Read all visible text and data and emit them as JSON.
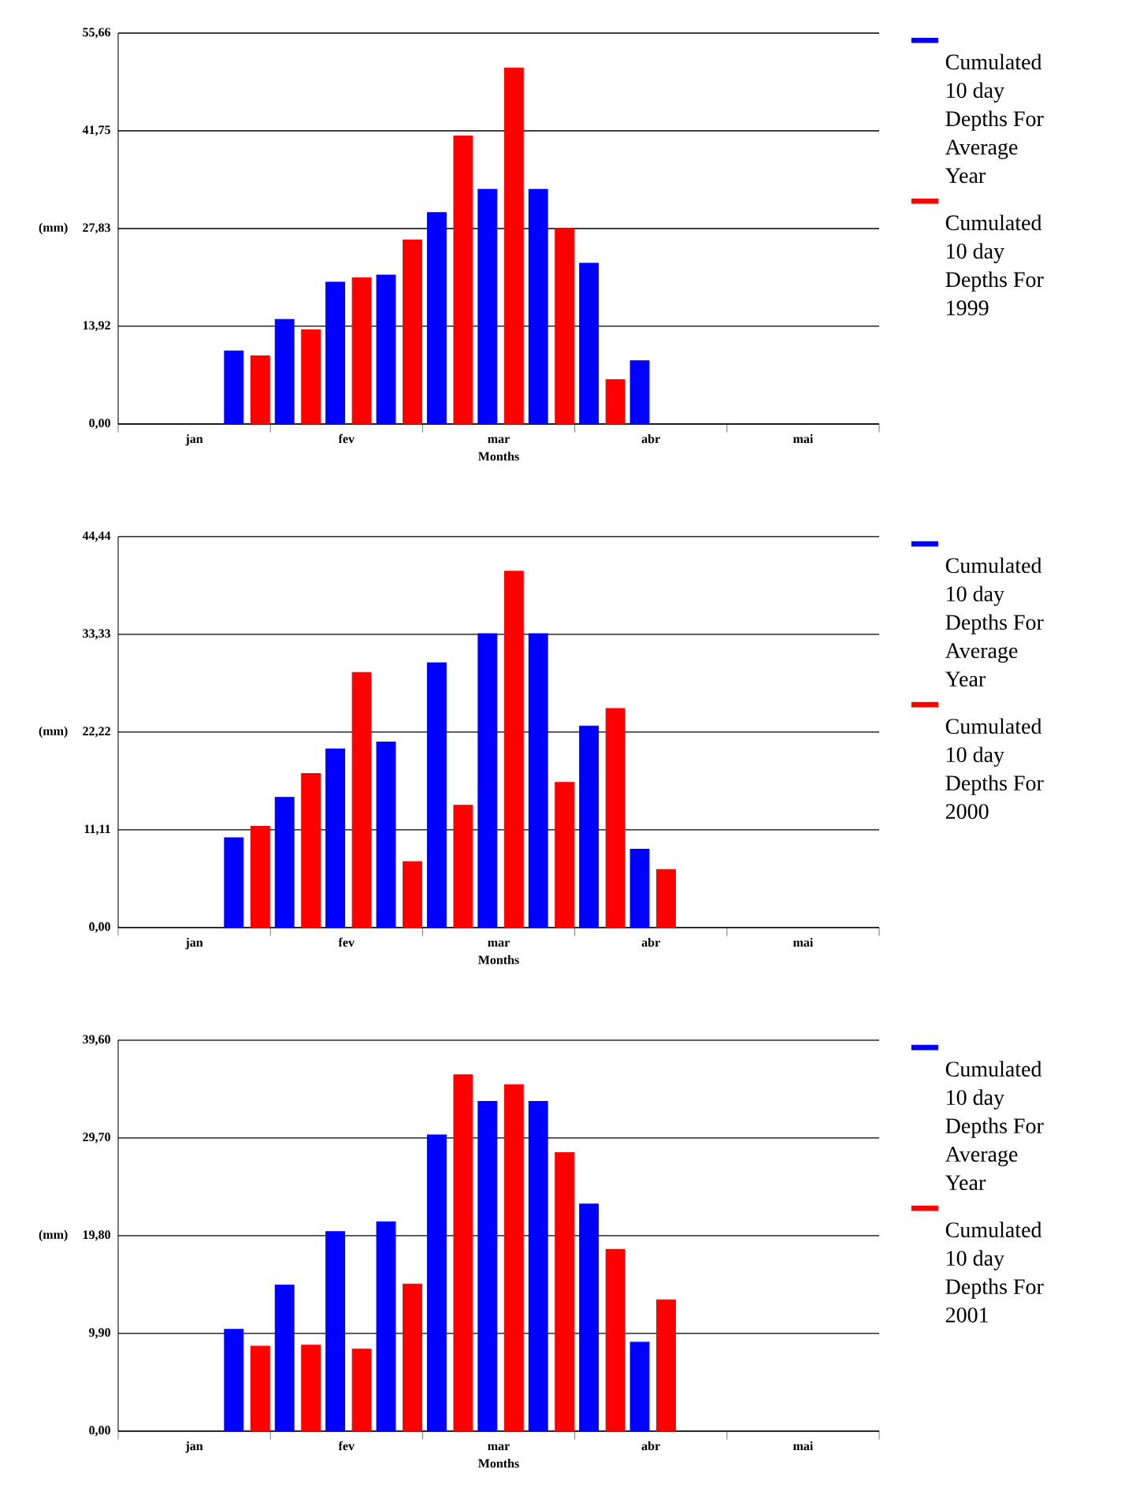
{
  "chart_data": [
    {
      "type": "bar",
      "categories": [
        null,
        "jan",
        null,
        null,
        "fev",
        null,
        null,
        "mar",
        null,
        null,
        "abr",
        null,
        null,
        "mai",
        null
      ],
      "xlabel": "Months",
      "ylabel": "(mm)",
      "ylim": [
        0,
        55.66
      ],
      "yticks": [
        {
          "value": 0,
          "label": "0,00"
        },
        {
          "value": 13.92,
          "label": "13,92"
        },
        {
          "value": 27.83,
          "label": "27,83"
        },
        {
          "value": 41.75,
          "label": "41,75"
        },
        {
          "value": 55.66,
          "label": "55,66"
        }
      ],
      "grid": "y",
      "legend": "right",
      "series": [
        {
          "name": "Cumulated 10 day Depths For Average Year",
          "color": "#0000ff",
          "values": [
            null,
            null,
            10.4,
            14.9,
            20.2,
            21.2,
            30.1,
            33.4,
            33.4,
            22.9,
            9.0,
            null,
            null,
            null,
            null
          ]
        },
        {
          "name": "Cumulated 10 day Depths For 1999",
          "color": "#ff0000",
          "values": [
            null,
            null,
            9.7,
            13.4,
            20.8,
            26.2,
            41.0,
            50.7,
            27.8,
            6.3,
            null,
            null,
            null,
            null,
            null
          ]
        }
      ]
    },
    {
      "type": "bar",
      "categories": [
        null,
        "jan",
        null,
        null,
        "fev",
        null,
        null,
        "mar",
        null,
        null,
        "abr",
        null,
        null,
        "mai",
        null
      ],
      "xlabel": "Months",
      "ylabel": "(mm)",
      "ylim": [
        0,
        44.44
      ],
      "yticks": [
        {
          "value": 0,
          "label": "0,00"
        },
        {
          "value": 11.11,
          "label": "11,11"
        },
        {
          "value": 22.22,
          "label": "22,22"
        },
        {
          "value": 33.33,
          "label": "33,33"
        },
        {
          "value": 44.44,
          "label": "44,44"
        }
      ],
      "grid": "y",
      "legend": "right",
      "series": [
        {
          "name": "Cumulated 10 day Depths For Average Year",
          "color": "#0000ff",
          "values": [
            null,
            null,
            10.2,
            14.8,
            20.3,
            21.1,
            30.1,
            33.4,
            33.4,
            22.9,
            8.9,
            null,
            null,
            null,
            null
          ]
        },
        {
          "name": "Cumulated 10 day Depths For 2000",
          "color": "#ff0000",
          "values": [
            null,
            null,
            11.5,
            17.5,
            29.0,
            7.5,
            13.9,
            40.5,
            16.5,
            24.9,
            6.6,
            null,
            null,
            null,
            null
          ]
        }
      ]
    },
    {
      "type": "bar",
      "categories": [
        null,
        "jan",
        null,
        null,
        "fev",
        null,
        null,
        "mar",
        null,
        null,
        "abr",
        null,
        null,
        "mai",
        null
      ],
      "xlabel": "Months",
      "ylabel": "(mm)",
      "ylim": [
        0,
        39.6
      ],
      "yticks": [
        {
          "value": 0,
          "label": "0,00"
        },
        {
          "value": 9.9,
          "label": "9,90"
        },
        {
          "value": 19.8,
          "label": "19,80"
        },
        {
          "value": 29.7,
          "label": "29,70"
        },
        {
          "value": 39.6,
          "label": "39,60"
        }
      ],
      "grid": "y",
      "legend": "right",
      "series": [
        {
          "name": "Cumulated 10 day Depths For Average Year",
          "color": "#0000ff",
          "values": [
            null,
            null,
            10.3,
            14.8,
            20.2,
            21.2,
            30.0,
            33.4,
            33.4,
            23.0,
            9.0,
            null,
            null,
            null,
            null
          ]
        },
        {
          "name": "Cumulated 10 day Depths For 2001",
          "color": "#ff0000",
          "values": [
            null,
            null,
            8.6,
            8.7,
            8.3,
            14.9,
            36.1,
            35.1,
            28.2,
            18.4,
            13.3,
            null,
            null,
            null,
            null
          ]
        }
      ]
    }
  ]
}
